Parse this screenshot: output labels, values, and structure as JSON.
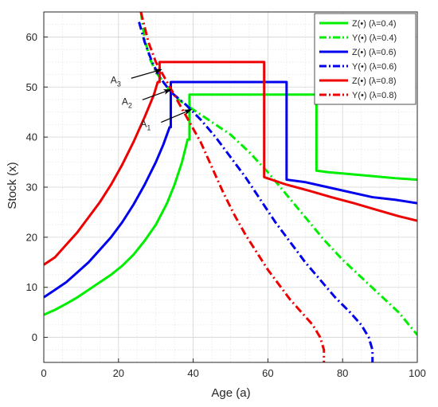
{
  "chart_data": {
    "type": "line",
    "title": "",
    "xlabel": "Age (a)",
    "ylabel": "Stock (x)",
    "xlim": [
      0,
      100
    ],
    "ylim": [
      -5,
      65
    ],
    "xticks": [
      0,
      20,
      40,
      60,
      80,
      100
    ],
    "yticks": [
      0,
      10,
      20,
      30,
      40,
      50,
      60
    ],
    "grid": true,
    "legend_position": "top-right",
    "series": [
      {
        "name": "Z(•) (λ=0.4)",
        "color": "#00ee00",
        "style": "solid",
        "points": [
          [
            0,
            4.5
          ],
          [
            3,
            5.5
          ],
          [
            6,
            6.7
          ],
          [
            9,
            8.0
          ],
          [
            12,
            9.5
          ],
          [
            15,
            11.0
          ],
          [
            18,
            12.5
          ],
          [
            21,
            14.3
          ],
          [
            24,
            16.5
          ],
          [
            27,
            19.3
          ],
          [
            30,
            22.5
          ],
          [
            33,
            26.8
          ],
          [
            35,
            30.5
          ],
          [
            37,
            35.0
          ],
          [
            38.5,
            39.5
          ],
          [
            39,
            39.5
          ],
          [
            39,
            48.5
          ],
          [
            73,
            48.5
          ],
          [
            73,
            33.3
          ],
          [
            76,
            33.0
          ],
          [
            82,
            32.6
          ],
          [
            88,
            32.2
          ],
          [
            94,
            31.8
          ],
          [
            100,
            31.5
          ]
        ]
      },
      {
        "name": "Y(•) (λ=0.4)",
        "color": "#00ee00",
        "style": "dashed",
        "points": [
          [
            26,
            65
          ],
          [
            27,
            59.5
          ],
          [
            28.5,
            55.5
          ],
          [
            30,
            53
          ],
          [
            33,
            50
          ],
          [
            36,
            47.5
          ],
          [
            40,
            45.5
          ],
          [
            45,
            43
          ],
          [
            50,
            40.5
          ],
          [
            55,
            37
          ],
          [
            60,
            33
          ],
          [
            65,
            28.5
          ],
          [
            70,
            24
          ],
          [
            75,
            19.5
          ],
          [
            80,
            15.5
          ],
          [
            85,
            12
          ],
          [
            90,
            8.5
          ],
          [
            95,
            5
          ],
          [
            100,
            0.5
          ]
        ]
      },
      {
        "name": "Z(•) (λ=0.6)",
        "color": "#0000ee",
        "style": "solid",
        "points": [
          [
            0,
            8
          ],
          [
            3,
            9.5
          ],
          [
            6,
            11
          ],
          [
            9,
            13
          ],
          [
            12,
            15
          ],
          [
            15,
            17.5
          ],
          [
            18,
            20
          ],
          [
            21,
            23
          ],
          [
            24,
            26.5
          ],
          [
            27,
            30.5
          ],
          [
            30,
            35
          ],
          [
            32,
            38.5
          ],
          [
            33.7,
            42
          ],
          [
            34,
            42
          ],
          [
            34,
            51
          ],
          [
            65,
            51
          ],
          [
            65,
            31.5
          ],
          [
            70,
            31
          ],
          [
            76,
            30
          ],
          [
            82,
            29
          ],
          [
            88,
            28
          ],
          [
            94,
            27.5
          ],
          [
            100,
            26.8
          ]
        ]
      },
      {
        "name": "Y(•) (λ=0.6)",
        "color": "#0000ee",
        "style": "dashed",
        "points": [
          [
            25.5,
            63
          ],
          [
            27,
            59
          ],
          [
            29,
            55
          ],
          [
            31,
            52
          ],
          [
            34,
            49
          ],
          [
            38,
            46.5
          ],
          [
            42,
            43.5
          ],
          [
            46,
            40
          ],
          [
            50,
            36
          ],
          [
            54,
            32
          ],
          [
            58,
            27.5
          ],
          [
            62,
            23
          ],
          [
            66,
            19
          ],
          [
            70,
            15
          ],
          [
            74,
            11.5
          ],
          [
            78,
            8
          ],
          [
            82,
            5
          ],
          [
            85,
            2.5
          ],
          [
            87,
            0
          ],
          [
            88,
            -2.5
          ],
          [
            88,
            -5
          ]
        ]
      },
      {
        "name": "Z(•) (λ=0.8)",
        "color": "#ee0000",
        "style": "solid",
        "points": [
          [
            0,
            14.5
          ],
          [
            3,
            16
          ],
          [
            6,
            18.5
          ],
          [
            9,
            21
          ],
          [
            12,
            24
          ],
          [
            15,
            27
          ],
          [
            18,
            30.5
          ],
          [
            21,
            34.5
          ],
          [
            24,
            39
          ],
          [
            27,
            44
          ],
          [
            29.5,
            48.5
          ],
          [
            30.5,
            51
          ],
          [
            31,
            51
          ],
          [
            31,
            55
          ],
          [
            59,
            55
          ],
          [
            59,
            32
          ],
          [
            65,
            30.5
          ],
          [
            71,
            29.3
          ],
          [
            77,
            28
          ],
          [
            83,
            26.8
          ],
          [
            89,
            25.5
          ],
          [
            95,
            24.2
          ],
          [
            100,
            23.3
          ]
        ]
      },
      {
        "name": "Y(•) (λ=0.8)",
        "color": "#ee0000",
        "style": "dashed",
        "points": [
          [
            26,
            65
          ],
          [
            28,
            59
          ],
          [
            30,
            55
          ],
          [
            33,
            51
          ],
          [
            36,
            47
          ],
          [
            39,
            43
          ],
          [
            42,
            39
          ],
          [
            45,
            34
          ],
          [
            48,
            29
          ],
          [
            51,
            24.5
          ],
          [
            54,
            20.5
          ],
          [
            57,
            17
          ],
          [
            60,
            13.5
          ],
          [
            63,
            10.5
          ],
          [
            66,
            7.5
          ],
          [
            69,
            5
          ],
          [
            72,
            2.5
          ],
          [
            74,
            0
          ],
          [
            75,
            -2.5
          ],
          [
            75,
            -5
          ]
        ]
      }
    ],
    "annotations": [
      {
        "letter": "A",
        "sub": "1",
        "text_at": [
          28,
          42
        ],
        "arrow_to": [
          39.5,
          45.5
        ]
      },
      {
        "letter": "A",
        "sub": "2",
        "text_at": [
          23,
          46.5
        ],
        "arrow_to": [
          34,
          49.5
        ]
      },
      {
        "letter": "A",
        "sub": "3",
        "text_at": [
          20,
          50.8
        ],
        "arrow_to": [
          31.5,
          53.5
        ]
      }
    ]
  }
}
